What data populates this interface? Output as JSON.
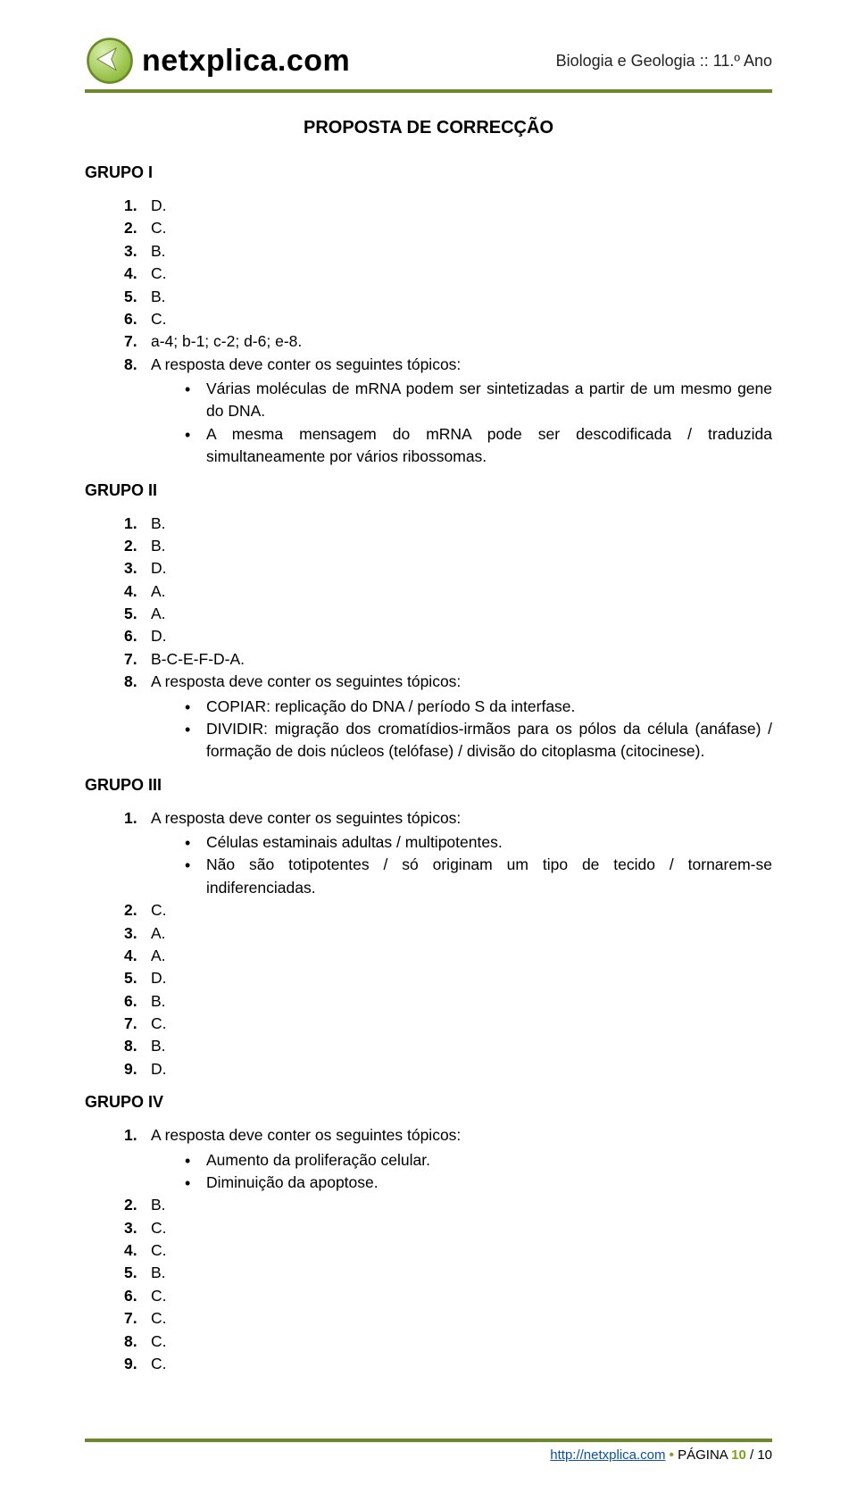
{
  "header": {
    "brand": "netxplica.com",
    "subject": "Biologia e Geologia :: 11.º Ano",
    "logo": {
      "circle_fill": "#b7d66b",
      "circle_stroke": "#6a8a2a",
      "arrow_fill": "#ffffff"
    }
  },
  "title": "PROPOSTA DE CORRECÇÃO",
  "colors": {
    "rule": "#6a8a2a",
    "link": "#0b4fb3",
    "accent": "#7aa31a",
    "text": "#000000",
    "background": "#ffffff"
  },
  "typography": {
    "brand_fontsize": 34,
    "title_fontsize": 20,
    "body_fontsize": 17.5,
    "footer_fontsize": 15
  },
  "groups": [
    {
      "title": "GRUPO I",
      "items": [
        {
          "n": "1.",
          "v": "D."
        },
        {
          "n": "2.",
          "v": "C."
        },
        {
          "n": "3.",
          "v": "B."
        },
        {
          "n": "4.",
          "v": "C."
        },
        {
          "n": "5.",
          "v": "B."
        },
        {
          "n": "6.",
          "v": "C."
        },
        {
          "n": "7.",
          "v": "a-4; b-1; c-2; d-6; e-8."
        },
        {
          "n": "8.",
          "v": "A resposta deve conter os seguintes tópicos:",
          "bullets": [
            "Várias moléculas de mRNA podem ser sintetizadas a partir de um mesmo gene do DNA.",
            "A mesma mensagem do mRNA pode ser descodificada / traduzida simultaneamente por vários ribossomas."
          ]
        }
      ]
    },
    {
      "title": "GRUPO II",
      "items": [
        {
          "n": "1.",
          "v": "B."
        },
        {
          "n": "2.",
          "v": "B."
        },
        {
          "n": "3.",
          "v": "D."
        },
        {
          "n": "4.",
          "v": "A."
        },
        {
          "n": "5.",
          "v": "A."
        },
        {
          "n": "6.",
          "v": "D."
        },
        {
          "n": "7.",
          "v": "B-C-E-F-D-A."
        },
        {
          "n": "8.",
          "v": "A resposta deve conter os seguintes tópicos:",
          "bullets": [
            "COPIAR: replicação do DNA / período S da interfase.",
            "DIVIDIR: migração dos cromatídios-irmãos para os pólos da célula (anáfase) / formação de dois núcleos (telófase) / divisão do citoplasma (citocinese)."
          ]
        }
      ]
    },
    {
      "title": "GRUPO III",
      "items": [
        {
          "n": "1.",
          "v": "A resposta deve conter os seguintes tópicos:",
          "bullets": [
            "Células estaminais adultas / multipotentes.",
            "Não são totipotentes / só originam um tipo de tecido / tornarem-se indiferenciadas."
          ]
        },
        {
          "n": "2.",
          "v": "C."
        },
        {
          "n": "3.",
          "v": "A."
        },
        {
          "n": "4.",
          "v": "A."
        },
        {
          "n": "5.",
          "v": "D."
        },
        {
          "n": "6.",
          "v": "B."
        },
        {
          "n": "7.",
          "v": "C."
        },
        {
          "n": "8.",
          "v": "B."
        },
        {
          "n": "9.",
          "v": "D."
        }
      ]
    },
    {
      "title": "GRUPO IV",
      "items": [
        {
          "n": "1.",
          "v": "A resposta deve conter os seguintes tópicos:",
          "bullets": [
            "Aumento da proliferação celular.",
            "Diminuição da apoptose."
          ]
        },
        {
          "n": "2.",
          "v": "B."
        },
        {
          "n": "3.",
          "v": "C."
        },
        {
          "n": "4.",
          "v": "C."
        },
        {
          "n": "5.",
          "v": "B."
        },
        {
          "n": "6.",
          "v": "C."
        },
        {
          "n": "7.",
          "v": "C."
        },
        {
          "n": "8.",
          "v": "C."
        },
        {
          "n": "9.",
          "v": "C."
        }
      ]
    }
  ],
  "footer": {
    "url": "http://netxplica.com",
    "sep": " • ",
    "page_label": "PÁGINA ",
    "page_num": "10",
    "page_total": " / 10"
  }
}
